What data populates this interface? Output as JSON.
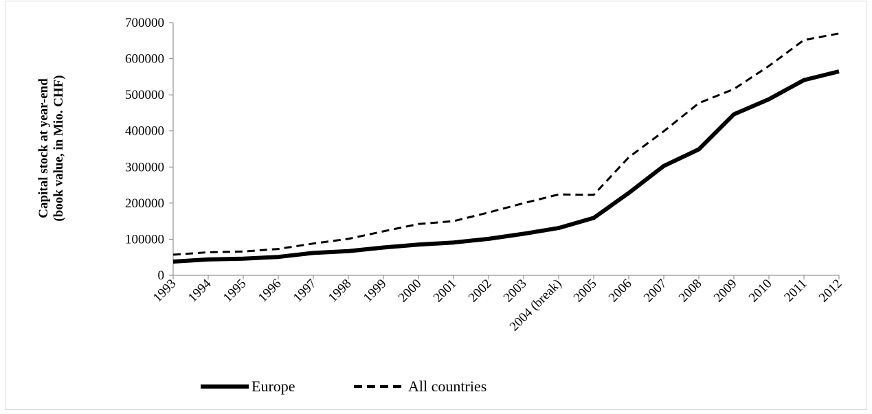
{
  "chart_data": {
    "type": "line",
    "categories": [
      "1993",
      "1994",
      "1995",
      "1996",
      "1997",
      "1998",
      "1999",
      "2000",
      "2001",
      "2002",
      "2003",
      "2004 (break)",
      "2005",
      "2006",
      "2007",
      "2008",
      "2009",
      "2010",
      "2011",
      "2012"
    ],
    "series": [
      {
        "name": "Europe",
        "style": "solid",
        "values": [
          38000,
          44000,
          46000,
          51000,
          62000,
          67000,
          77000,
          85000,
          91000,
          101000,
          115000,
          131000,
          159000,
          228000,
          303000,
          349000,
          446000,
          488000,
          541000,
          565000
        ]
      },
      {
        "name": "All countries",
        "style": "dashed",
        "values": [
          57000,
          64000,
          66000,
          73000,
          88000,
          101000,
          122000,
          142000,
          150000,
          174000,
          200000,
          224000,
          223000,
          327000,
          399000,
          477000,
          516000,
          580000,
          652000,
          670000
        ]
      }
    ],
    "yticks": [
      "0",
      "100000",
      "200000",
      "300000",
      "400000",
      "500000",
      "600000",
      "700000"
    ],
    "ylim": [
      0,
      700000
    ],
    "ylabel_line1": "Capital stock at year-end",
    "ylabel_line2": "(book value, in Mio. CHF)",
    "xlabel": "",
    "title": "",
    "legend_position": "bottom",
    "colors": {
      "europe": "#000000",
      "all_countries": "#000000",
      "axis": "#7f7f7f"
    }
  }
}
